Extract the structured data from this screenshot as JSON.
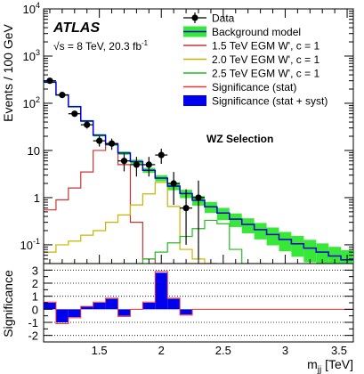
{
  "chart_data": [
    {
      "type": "line",
      "panel": "main",
      "atlas_label": "ATLAS",
      "energy_label": "√s = 8 TeV, 20.3 fb",
      "energy_superscript": "-1",
      "selection_label": "WZ Selection",
      "ylabel": "Events / 100 GeV",
      "yscale": "log",
      "ylim": [
        0.04,
        10000
      ],
      "xlim": [
        1.05,
        3.55
      ],
      "ytick_labels": [
        {
          "value": 0.1,
          "mant": "10",
          "exp": "-1"
        },
        {
          "value": 1,
          "mant": "1",
          "exp": ""
        },
        {
          "value": 10,
          "mant": "10",
          "exp": ""
        },
        {
          "value": 100,
          "mant": "10",
          "exp": "2"
        },
        {
          "value": 1000,
          "mant": "10",
          "exp": "3"
        },
        {
          "value": 10000,
          "mant": "10",
          "exp": "4"
        }
      ],
      "legend": {
        "placement": "top-right",
        "entries": [
          {
            "label": "Data",
            "style": "marker",
            "color": "#000000"
          },
          {
            "label": "Background model",
            "style": "band",
            "color": "#38e838"
          },
          {
            "label": "1.5 TeV EGM W', c = 1",
            "style": "line",
            "color": "#cc3333"
          },
          {
            "label": "2.0 TeV EGM W', c = 1",
            "style": "line",
            "color": "#c8b400"
          },
          {
            "label": "2.5 TeV EGM W', c = 1",
            "style": "line",
            "color": "#22bb22"
          },
          {
            "label": "Significance (stat)",
            "style": "line",
            "color": "#ee3333"
          },
          {
            "label": "Significance (stat + syst)",
            "style": "fill",
            "color": "#0000ee"
          }
        ]
      },
      "bin_edges": [
        1.05,
        1.15,
        1.25,
        1.35,
        1.45,
        1.55,
        1.65,
        1.75,
        1.85,
        1.95,
        2.05,
        2.15,
        2.25,
        2.35,
        2.45,
        2.55,
        2.65,
        2.75,
        2.85,
        2.95,
        3.05,
        3.15,
        3.25,
        3.35,
        3.45,
        3.55
      ],
      "background": {
        "name": "Background model",
        "color": "#0000cc",
        "band_color": "#38e838",
        "values": [
          280,
          150,
          85,
          42,
          21,
          13.5,
          8.8,
          5.8,
          3.8,
          2.6,
          1.75,
          1.22,
          0.88,
          0.64,
          0.47,
          0.35,
          0.27,
          0.21,
          0.165,
          0.13,
          0.105,
          0.085,
          0.07,
          0.058,
          0.048
        ],
        "band_rel": [
          0.02,
          0.03,
          0.04,
          0.05,
          0.06,
          0.07,
          0.08,
          0.1,
          0.12,
          0.15,
          0.18,
          0.2,
          0.23,
          0.26,
          0.29,
          0.32,
          0.35,
          0.38,
          0.41,
          0.44,
          0.47,
          0.5,
          0.53,
          0.56,
          0.6
        ]
      },
      "data": {
        "name": "Data",
        "x": [
          1.1,
          1.2,
          1.3,
          1.4,
          1.5,
          1.6,
          1.7,
          1.8,
          1.9,
          2.0,
          2.1,
          2.2,
          2.3
        ],
        "y": [
          300,
          150,
          60,
          35,
          16,
          14,
          6,
          5,
          5,
          8,
          2,
          0.6,
          1
        ],
        "err_up": [
          18,
          13,
          8,
          6,
          4,
          3.8,
          2.5,
          2.3,
          2.3,
          2.9,
          1.5,
          0.9,
          1.3
        ],
        "err_down": [
          17,
          12,
          7,
          5.9,
          3.9,
          3.7,
          2.4,
          2.2,
          2.2,
          2.8,
          1.3,
          0.5,
          0.95
        ]
      },
      "signals": [
        {
          "name": "1.5 TeV EGM W', c = 1",
          "color": "#cc3333",
          "values": [
            0.55,
            0.9,
            1.6,
            3.5,
            10,
            14,
            5,
            0.3,
            0.05,
            0.04,
            0.04,
            0.04,
            0.04,
            0.04
          ]
        },
        {
          "name": "2.0 TeV EGM W', c = 1",
          "color": "#c8b400",
          "values": [
            0.07,
            0.1,
            0.12,
            0.16,
            0.2,
            0.3,
            0.43,
            0.7,
            1.2,
            2.1,
            0.65,
            0.08,
            0.05,
            0.04
          ]
        },
        {
          "name": "2.5 TeV EGM W', c = 1",
          "color": "#22bb22",
          "values": [
            0.04,
            0.04,
            0.04,
            0.04,
            0.04,
            0.04,
            0.04,
            0.04,
            0.05,
            0.07,
            0.11,
            0.15,
            0.22,
            0.33,
            0.28,
            0.08,
            0.04,
            0.04
          ]
        }
      ],
      "xstart_index_note": ""
    },
    {
      "type": "bar",
      "panel": "ratio",
      "ylabel": "Significance",
      "xlabel_main": "m",
      "xlabel_sub": "jj",
      "xlabel_unit": " [TeV]",
      "ylim": [
        -2.5,
        3.5
      ],
      "ytick_labels": [
        "-2",
        "-1",
        "0",
        "1",
        "2",
        "3"
      ],
      "xtick_labels": [
        "1.5",
        "2",
        "2.5",
        "3",
        "3.5"
      ],
      "xticks": [
        1.5,
        2.0,
        2.5,
        3.0,
        3.5
      ],
      "dotted_lines": [
        -2,
        -1,
        1,
        2,
        3
      ],
      "series": [
        {
          "name": "Significance (stat + syst)",
          "color": "#0000ee",
          "values": [
            0.5,
            -1.0,
            -0.6,
            0.2,
            0.5,
            0.8,
            -0.5,
            0.0,
            0.5,
            2.8,
            0.8,
            -0.4,
            0.0
          ]
        },
        {
          "name": "Significance (stat)",
          "color": "#ee3333",
          "values": [
            0.55,
            -1.1,
            -0.65,
            0.22,
            0.55,
            0.85,
            -0.55,
            0.0,
            0.55,
            2.9,
            0.85,
            -0.45,
            0.0
          ]
        }
      ]
    }
  ]
}
